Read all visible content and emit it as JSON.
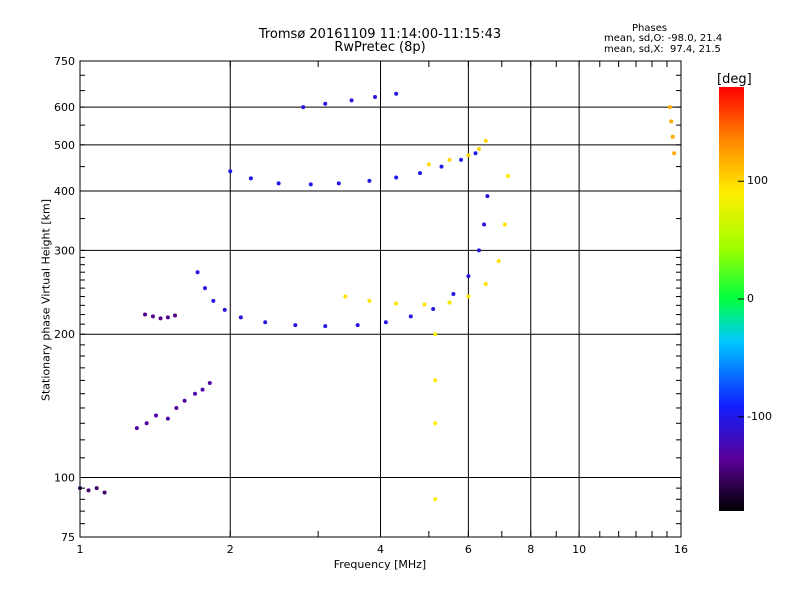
{
  "header": {
    "title_line1": "Tromsø 20161109 11:14:00-11:15:43",
    "title_line2": "RwPretec (8p)",
    "stats_heading": "Phases",
    "stats_o": "mean, sd,O: -98.0, 21.4",
    "stats_x": "mean, sd,X:  97.4, 21.5"
  },
  "colorbar": {
    "unit": "[deg]",
    "range": [
      -180,
      180
    ],
    "ticks": [
      "100",
      "0",
      "-100"
    ],
    "tick_values": [
      100,
      0,
      -100
    ]
  },
  "chart_data": {
    "type": "scatter",
    "xlabel": "Frequency [MHz]",
    "ylabel": "Stationary phase Virtual Height [km]",
    "xscale": "log",
    "yscale": "log",
    "xlim": [
      1,
      16
    ],
    "ylim": [
      75,
      750
    ],
    "x_ticks": [
      "1",
      "2",
      "4",
      "6",
      "8",
      "10",
      "16"
    ],
    "x_tick_values": [
      1,
      2,
      4,
      6,
      8,
      10,
      16
    ],
    "y_ticks": [
      "750",
      "600",
      "500",
      "400",
      "300",
      "200",
      "100",
      "75"
    ],
    "y_tick_values": [
      750,
      600,
      500,
      400,
      300,
      200,
      100,
      75
    ],
    "grid": true,
    "series": [
      {
        "name": "O",
        "phase_mean": -98.0,
        "phase_sd": 21.4,
        "traces": [
          {
            "x": [
              1.0,
              1.04,
              1.08,
              1.12
            ],
            "y": [
              95,
              94,
              95,
              93
            ],
            "phase": -150
          },
          {
            "x": [
              1.3,
              1.36,
              1.42,
              1.5,
              1.56,
              1.62,
              1.7,
              1.76,
              1.82
            ],
            "y": [
              127,
              130,
              135,
              133,
              140,
              145,
              150,
              153,
              158
            ],
            "phase": -130
          },
          {
            "x": [
              1.35,
              1.4,
              1.45,
              1.5,
              1.55
            ],
            "y": [
              220,
              218,
              216,
              217,
              219
            ],
            "phase": -140
          },
          {
            "x": [
              1.72,
              1.78,
              1.85,
              1.95,
              2.1,
              2.35,
              2.7,
              3.1,
              3.6,
              4.1,
              4.6,
              5.1,
              5.6,
              6.0,
              6.3,
              6.45,
              6.55
            ],
            "y": [
              270,
              250,
              235,
              225,
              217,
              212,
              209,
              208,
              209,
              212,
              218,
              226,
              243,
              265,
              300,
              340,
              390
            ],
            "phase": -105
          },
          {
            "x": [
              2.0,
              2.2,
              2.5,
              2.9,
              3.3,
              3.8,
              4.3,
              4.8,
              5.3,
              5.8,
              6.2
            ],
            "y": [
              440,
              425,
              415,
              413,
              415,
              420,
              427,
              436,
              450,
              465,
              480
            ],
            "phase": -100
          },
          {
            "x": [
              2.8,
              3.1,
              3.5,
              3.9,
              4.3
            ],
            "y": [
              600,
              610,
              620,
              630,
              640
            ],
            "phase": -105
          }
        ]
      },
      {
        "name": "X",
        "phase_mean": 97.4,
        "phase_sd": 21.5,
        "traces": [
          {
            "x": [
              3.4,
              3.8,
              4.3,
              4.9,
              5.5,
              6.0,
              6.5,
              6.9,
              7.1,
              7.2
            ],
            "y": [
              240,
              235,
              232,
              231,
              233,
              240,
              255,
              285,
              340,
              430
            ],
            "phase": 95
          },
          {
            "x": [
              5.0,
              5.5,
              6.0,
              6.3,
              6.5
            ],
            "y": [
              455,
              465,
              475,
              490,
              510
            ],
            "phase": 100
          },
          {
            "x": [
              5.15,
              5.15,
              5.15,
              5.15
            ],
            "y": [
              200,
              160,
              130,
              90
            ],
            "phase": 90
          },
          {
            "x": [
              15.2,
              15.3,
              15.4,
              15.5
            ],
            "y": [
              600,
              560,
              520,
              480
            ],
            "phase": 120
          }
        ]
      }
    ]
  }
}
